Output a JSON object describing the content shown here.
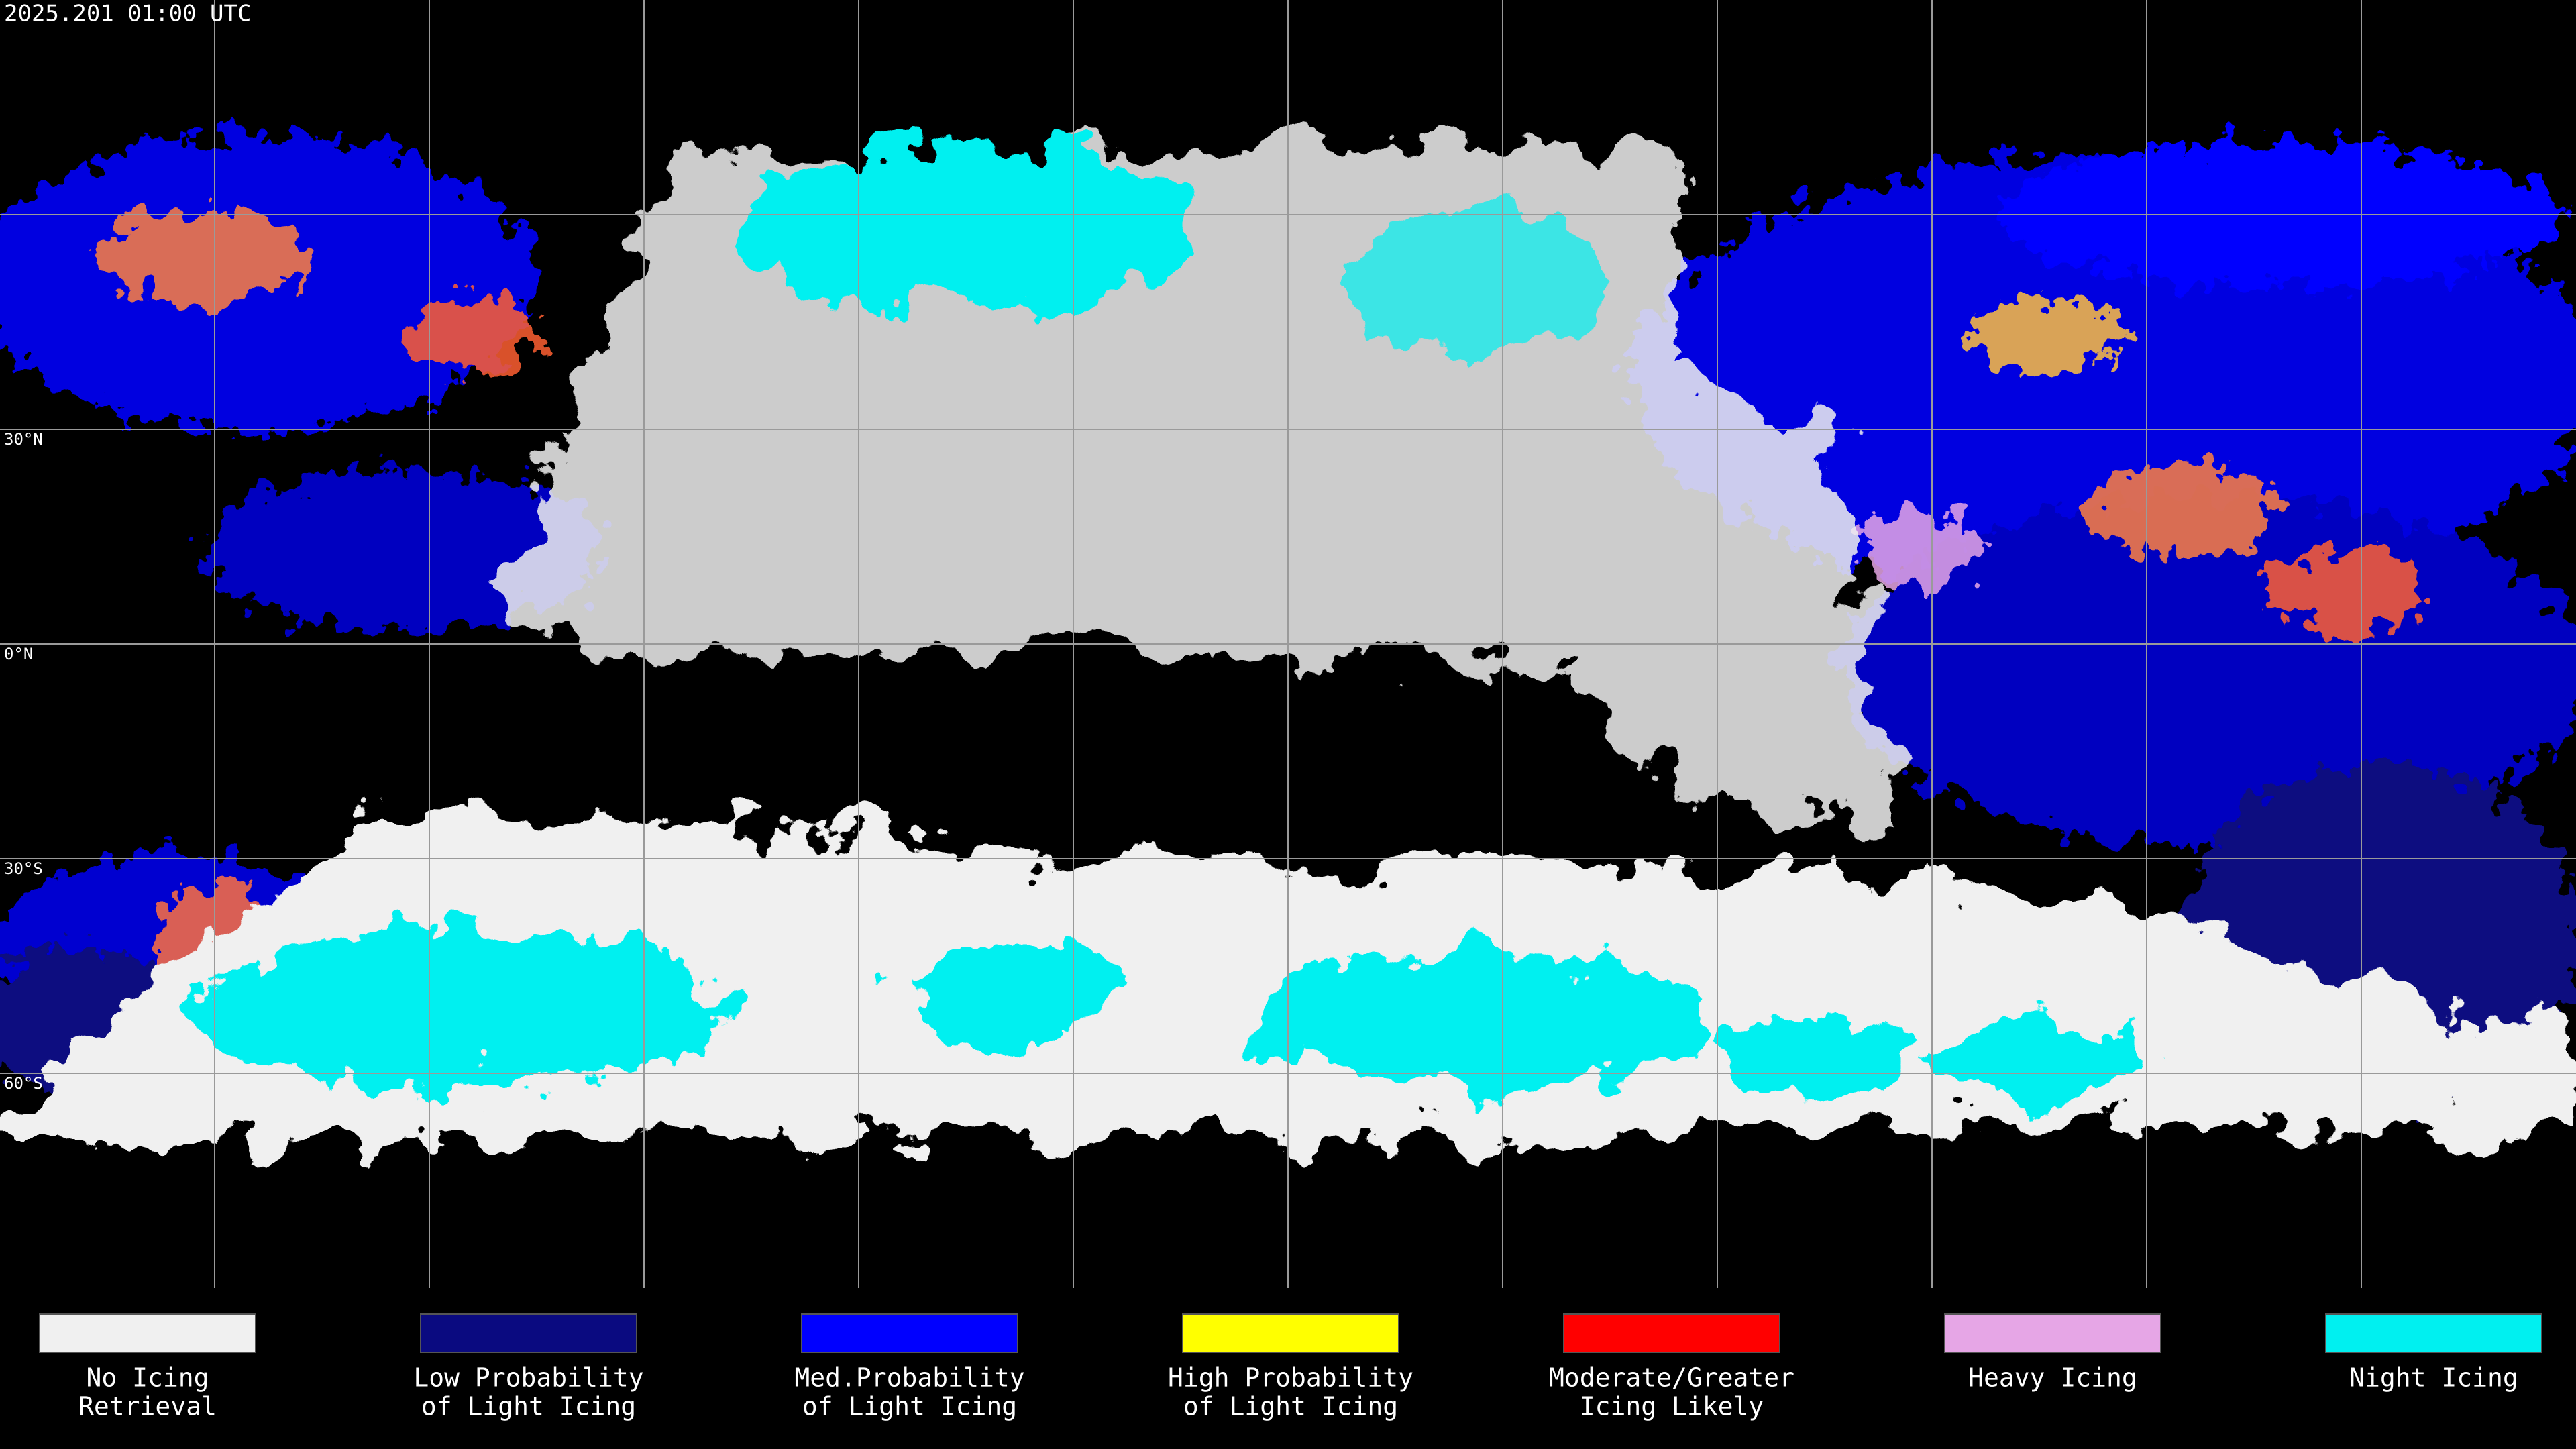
{
  "header": {
    "title": "2025.201 01:00 UTC"
  },
  "map": {
    "latitude_labels": [
      "30°N",
      "0°N",
      "30°S",
      "60°S"
    ]
  },
  "legend": {
    "items": [
      {
        "label": [
          "No Icing",
          "Retrieval"
        ],
        "color": "#f0f0f0"
      },
      {
        "label": [
          "Low Probability",
          "of Light Icing"
        ],
        "color": "#0a0a80"
      },
      {
        "label": [
          "Med.Probability",
          "of Light Icing"
        ],
        "color": "#0000ff"
      },
      {
        "label": [
          "High Probability",
          "of Light Icing"
        ],
        "color": "#ffff00"
      },
      {
        "label": [
          "Moderate/Greater",
          "Icing Likely"
        ],
        "color": "#ff0000"
      },
      {
        "label": [
          "Heavy Icing"
        ],
        "color": "#e6a6e6"
      },
      {
        "label": [
          "Night Icing"
        ],
        "color": "#00f0f0"
      }
    ]
  }
}
